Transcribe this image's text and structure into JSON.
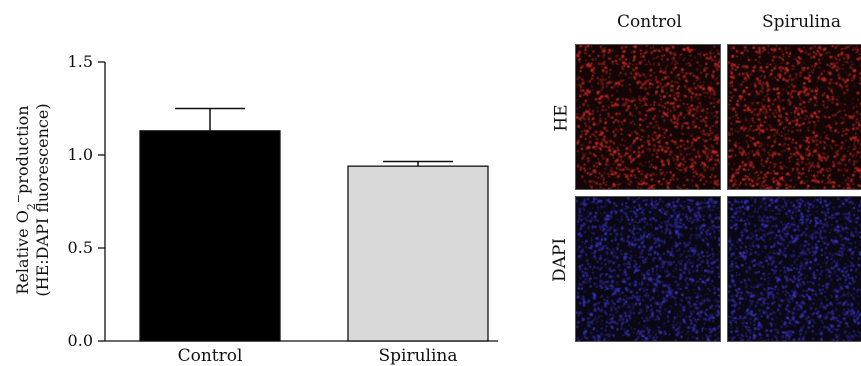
{
  "chart_data": {
    "type": "bar",
    "categories": [
      "Control",
      "Spirulina"
    ],
    "values": [
      1.13,
      0.94
    ],
    "errors": [
      0.12,
      0.025
    ],
    "bar_colors": [
      "#000000",
      "#d9d9d9"
    ],
    "ylim": [
      0,
      1.5
    ],
    "yticks": [
      "0.0",
      "0.5",
      "1.0",
      "1.5"
    ],
    "ylabel_line1_prefix": "Relative O",
    "ylabel_sub": "2",
    "ylabel_sup": "−",
    "ylabel_line1_suffix": "production",
    "ylabel_line2": "(HE:DAPI fluorescence)"
  },
  "micrographs": {
    "columns": [
      "Control",
      "Spirulina"
    ],
    "rows": [
      "HE",
      "DAPI"
    ],
    "row_colors": [
      "#d42a22",
      "#3a36c8"
    ]
  }
}
